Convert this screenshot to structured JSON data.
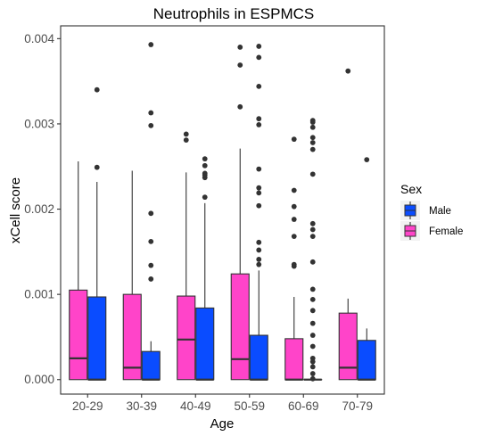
{
  "chart_data": {
    "type": "boxplot",
    "title": "Neutrophils in ESPMCS",
    "xlabel": "Age",
    "ylabel": "xCell score",
    "categories": [
      "20-29",
      "30-39",
      "40-49",
      "50-59",
      "60-69",
      "70-79"
    ],
    "ylim": [
      -0.00017,
      0.00415
    ],
    "yticks": [
      0,
      0.001,
      0.002,
      0.003,
      0.004
    ],
    "ytick_labels": [
      "0.000",
      "0.001",
      "0.002",
      "0.003",
      "0.004"
    ],
    "grid": false,
    "legend": {
      "title": "Sex",
      "position": "right",
      "entries": [
        {
          "label": "Male",
          "color": "#0A4CFF"
        },
        {
          "label": "Female",
          "color": "#FF44C9"
        }
      ]
    },
    "series": [
      {
        "name": "Female",
        "color": "#FF44C9",
        "boxes": [
          {
            "category": "20-29",
            "whisker_low": 0,
            "q1": 0,
            "median": 0.00025,
            "q3": 0.00105,
            "whisker_high": 0.00256,
            "outliers": []
          },
          {
            "category": "30-39",
            "whisker_low": 0,
            "q1": 0,
            "median": 0.00014,
            "q3": 0.001,
            "whisker_high": 0.00245,
            "outliers": []
          },
          {
            "category": "40-49",
            "whisker_low": 0,
            "q1": 0,
            "median": 0.00047,
            "q3": 0.00098,
            "whisker_high": 0.00243,
            "outliers": [
              0.00281,
              0.00288
            ]
          },
          {
            "category": "50-59",
            "whisker_low": 0,
            "q1": 0,
            "median": 0.00024,
            "q3": 0.00124,
            "whisker_high": 0.00271,
            "outliers": [
              0.0032,
              0.00369,
              0.0039
            ]
          },
          {
            "category": "60-69",
            "whisker_low": 0,
            "q1": 0,
            "median": 0,
            "q3": 0.00048,
            "whisker_high": 0.00097,
            "outliers": [
              0.00133,
              0.00135,
              0.00168,
              0.00188,
              0.00203,
              0.00222,
              0.00282
            ]
          },
          {
            "category": "70-79",
            "whisker_low": 0,
            "q1": 0,
            "median": 0.00014,
            "q3": 0.00078,
            "whisker_high": 0.00095,
            "outliers": [
              0.00362
            ]
          }
        ]
      },
      {
        "name": "Male",
        "color": "#0A4CFF",
        "boxes": [
          {
            "category": "20-29",
            "whisker_low": 0,
            "q1": 0,
            "median": 0,
            "q3": 0.00097,
            "whisker_high": 0.00232,
            "outliers": [
              0.00249,
              0.0034
            ]
          },
          {
            "category": "30-39",
            "whisker_low": 0,
            "q1": 0,
            "median": 0,
            "q3": 0.00033,
            "whisker_high": 0.00045,
            "outliers": [
              0.00118,
              0.00134,
              0.00162,
              0.00195,
              0.00298,
              0.00313,
              0.00393
            ]
          },
          {
            "category": "40-49",
            "whisker_low": 0,
            "q1": 0,
            "median": 0,
            "q3": 0.00084,
            "whisker_high": 0.00207,
            "outliers": [
              0.00214,
              0.00237,
              0.0024,
              0.00242,
              0.00251,
              0.00259
            ]
          },
          {
            "category": "50-59",
            "whisker_low": 0,
            "q1": 0,
            "median": 0,
            "q3": 0.00052,
            "whisker_high": 0.00128,
            "outliers": [
              0.00135,
              0.00141,
              0.00152,
              0.00161,
              0.00204,
              0.00219,
              0.00225,
              0.00247,
              0.00299,
              0.00306,
              0.00344,
              0.00378,
              0.00391
            ]
          },
          {
            "category": "60-69",
            "whisker_low": 0,
            "q1": 0,
            "median": 0,
            "q3": 0,
            "whisker_high": 0,
            "outliers": [
              1e-05,
              7e-05,
              0.00015,
              0.00021,
              0.00025,
              0.00039,
              0.00052,
              0.00066,
              0.00081,
              0.00094,
              0.00106,
              0.00138,
              0.00168,
              0.00176,
              0.00183,
              0.00241,
              0.0027,
              0.00278,
              0.00284,
              0.00296,
              0.00302,
              0.00304
            ]
          },
          {
            "category": "70-79",
            "whisker_low": 0,
            "q1": 0,
            "median": 0,
            "q3": 0.00046,
            "whisker_high": 0.0006,
            "outliers": [
              0.00258
            ]
          }
        ]
      }
    ]
  }
}
